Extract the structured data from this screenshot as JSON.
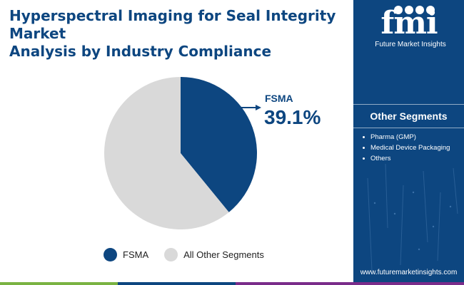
{
  "title": {
    "line1": "Hyperspectral Imaging for Seal Integrity Market",
    "line2": "Analysis by Industry Compliance"
  },
  "chart_data": {
    "type": "pie",
    "title": "Hyperspectral Imaging for Seal Integrity Market Analysis by Industry Compliance",
    "slices": [
      {
        "label": "FSMA",
        "value": 39.1,
        "color": "#0d4680"
      },
      {
        "label": "All Other Segments",
        "value": 60.9,
        "color": "#d9d9d9"
      }
    ],
    "callout": {
      "label": "FSMA",
      "value_text": "39.1%"
    },
    "legend_position": "bottom"
  },
  "legend": {
    "items": [
      {
        "label": "FSMA",
        "color": "#0d4680"
      },
      {
        "label": "All Other Segments",
        "color": "#d9d9d9"
      }
    ]
  },
  "sidebar": {
    "logo": {
      "letters": "fmi",
      "name": "Future Market Insights"
    },
    "heading": "Other Segments",
    "items": [
      "Pharma (GMP)",
      "Medical Device Packaging",
      "Others"
    ],
    "website": "www.futuremarketinsights.com"
  },
  "colors": {
    "brand_navy": "#0d4680",
    "light_gray": "#d9d9d9",
    "bar_green": "#7ab342",
    "bar_purple": "#7a2c8a"
  }
}
